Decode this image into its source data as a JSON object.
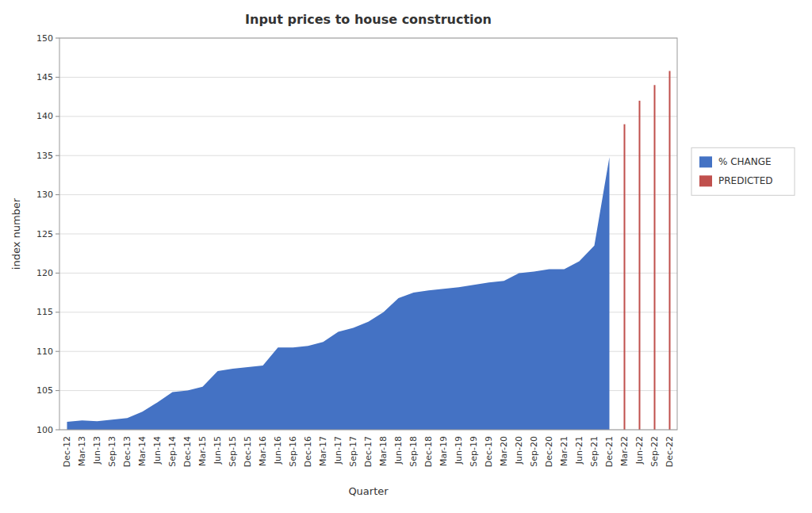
{
  "chart_data": {
    "type": "area",
    "title": "Input prices to house construction",
    "xlabel": "Quarter",
    "ylabel": "index number",
    "categories": [
      "Dec-12",
      "Mar-13",
      "Jun-13",
      "Sep-13",
      "Dec-13",
      "Mar-14",
      "Jun-14",
      "Sep-14",
      "Dec-14",
      "Mar-15",
      "Jun-15",
      "Sep-15",
      "Dec-15",
      "Mar-16",
      "Jun-16",
      "Sep-16",
      "Dec-16",
      "Mar-17",
      "Jun-17",
      "Sep-17",
      "Dec-17",
      "Mar-18",
      "Jun-18",
      "Sep-18",
      "Dec-18",
      "Mar-19",
      "Jun-19",
      "Sep-19",
      "Dec-19",
      "Mar-20",
      "Jun-20",
      "Sep-20",
      "Dec-20",
      "Mar-21",
      "Jun-21",
      "Sep-21",
      "Dec-21",
      "Mar-22",
      "Jun-22",
      "Sep-22",
      "Dec-22"
    ],
    "series": [
      {
        "name": "% CHANGE",
        "type": "area",
        "color": "#4472C4",
        "values": [
          101.0,
          101.2,
          101.1,
          101.3,
          101.5,
          102.3,
          103.5,
          104.8,
          105.0,
          105.5,
          107.5,
          107.8,
          108.0,
          108.2,
          110.5,
          110.5,
          110.7,
          111.2,
          112.5,
          113.0,
          113.8,
          115.0,
          116.8,
          117.5,
          117.8,
          118.0,
          118.2,
          118.5,
          118.8,
          119.0,
          120.0,
          120.2,
          120.5,
          120.5,
          121.5,
          123.5,
          134.8,
          null,
          null,
          null,
          null
        ]
      },
      {
        "name": "PREDICTED",
        "type": "bar",
        "color": "#C0504D",
        "values": [
          null,
          null,
          null,
          null,
          null,
          null,
          null,
          null,
          null,
          null,
          null,
          null,
          null,
          null,
          null,
          null,
          null,
          null,
          null,
          null,
          null,
          null,
          null,
          null,
          null,
          null,
          null,
          null,
          null,
          null,
          null,
          null,
          null,
          null,
          null,
          null,
          null,
          139.0,
          142.0,
          144.0,
          145.8
        ]
      }
    ],
    "ylim": [
      100,
      150
    ],
    "yticks": [
      100,
      105,
      110,
      115,
      120,
      125,
      130,
      135,
      140,
      145,
      150
    ],
    "grid": true,
    "legend": "right"
  }
}
